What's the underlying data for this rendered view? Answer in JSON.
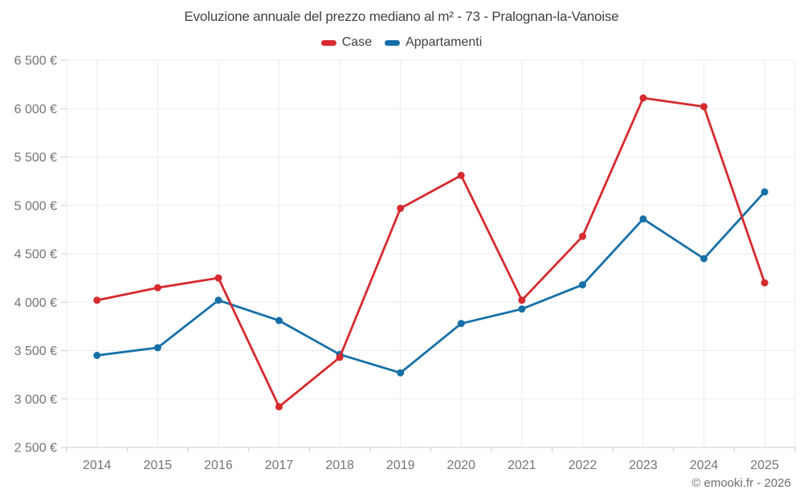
{
  "header": {
    "title": "Evoluzione annuale del prezzo mediano al m² - 73 - Pralognan-la-Vanoise",
    "legend": [
      {
        "label": "Case",
        "color": "#d62a2e"
      },
      {
        "label": "Appartamenti",
        "color": "#1670a8"
      }
    ]
  },
  "footer": {
    "credit": "© emooki.fr - 2026"
  },
  "chart_data": {
    "type": "line",
    "title": "Evoluzione annuale del prezzo mediano al m² - 73 - Pralognan-la-Vanoise",
    "xlabel": "",
    "ylabel": "",
    "categories": [
      "2014",
      "2015",
      "2016",
      "2017",
      "2018",
      "2019",
      "2020",
      "2021",
      "2022",
      "2023",
      "2024",
      "2025"
    ],
    "series": [
      {
        "name": "Case",
        "color": "#d62a2e",
        "values": [
          4020,
          4150,
          4250,
          2920,
          3430,
          4970,
          5310,
          4020,
          4680,
          6110,
          6020,
          4200
        ]
      },
      {
        "name": "Appartamenti",
        "color": "#1670a8",
        "values": [
          3450,
          3530,
          4020,
          3810,
          3460,
          3270,
          3780,
          3930,
          4180,
          4860,
          4450,
          5140
        ]
      }
    ],
    "ylim": [
      2500,
      6500
    ],
    "ytick_step": 500,
    "ytick_labels": [
      "2 500 €",
      "3 000 €",
      "3 500 €",
      "4 000 €",
      "4 500 €",
      "5 000 €",
      "5 500 €",
      "6 000 €",
      "6 500 €"
    ],
    "currency_suffix": "€",
    "grid": true,
    "legend_position": "top",
    "colors": {
      "gridline": "#ebebeb",
      "axis_line": "#cccccc",
      "axis_text": "#757575"
    }
  }
}
